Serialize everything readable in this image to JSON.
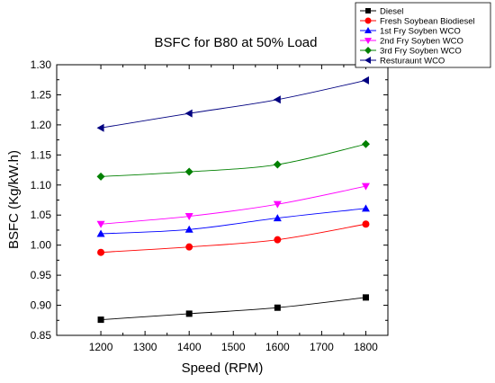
{
  "chart_data": {
    "type": "line",
    "title": "BSFC for B80 at 50% Load",
    "xlabel": "Speed (RPM)",
    "ylabel": "BSFC (Kg/kW.h)",
    "x": [
      1200,
      1400,
      1600,
      1800
    ],
    "xlim": [
      1100,
      1850
    ],
    "ylim": [
      0.85,
      1.3
    ],
    "xticks": [
      1200,
      1300,
      1400,
      1500,
      1600,
      1700,
      1800
    ],
    "yticks": [
      0.85,
      0.9,
      0.95,
      1.0,
      1.05,
      1.1,
      1.15,
      1.2,
      1.25,
      1.3
    ],
    "grid": false,
    "legend_position": "top-right",
    "series": [
      {
        "name": "Diesel",
        "values": [
          0.876,
          0.886,
          0.896,
          0.913
        ],
        "color": "#000000",
        "marker": "square"
      },
      {
        "name": "Fresh Soybean Biodiesel",
        "values": [
          0.988,
          0.997,
          1.009,
          1.035
        ],
        "color": "#ff0000",
        "marker": "circle"
      },
      {
        "name": "1st Fry Soyben WCO",
        "values": [
          1.019,
          1.026,
          1.045,
          1.061
        ],
        "color": "#0000ff",
        "marker": "triangle-up"
      },
      {
        "name": "2nd Fry Soyben WCO",
        "values": [
          1.035,
          1.048,
          1.068,
          1.098
        ],
        "color": "#ff00ff",
        "marker": "triangle-down"
      },
      {
        "name": "3rd Fry Soyben WCO",
        "values": [
          1.114,
          1.122,
          1.134,
          1.168
        ],
        "color": "#008000",
        "marker": "diamond"
      },
      {
        "name": "Resturaunt WCO",
        "values": [
          1.195,
          1.219,
          1.242,
          1.274
        ],
        "color": "#000080",
        "marker": "triangle-left"
      }
    ]
  }
}
